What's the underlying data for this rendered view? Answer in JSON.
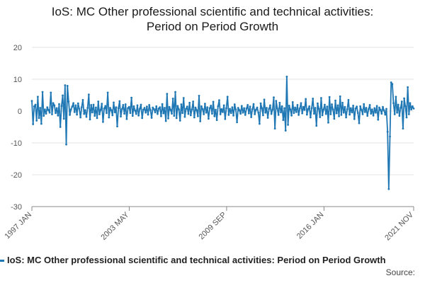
{
  "title_line1": "IoS: MC Other professional scientific and technical activities:",
  "title_line2": "Period on Period Growth",
  "legend_label": "IoS: MC Other professional scientific and technical activities: Period on Period Growth",
  "source_label": "Source:",
  "chart_data": {
    "type": "line",
    "title": "IoS: MC Other professional scientific and technical activities: Period on Period Growth",
    "xlabel": "",
    "ylabel": "",
    "ylim": [
      -30,
      20
    ],
    "yticks": [
      20,
      10,
      0,
      -10,
      -20,
      -30
    ],
    "x_tick_labels": [
      "1997 JAN",
      "2003 MAY",
      "2009 SEP",
      "2016 JAN",
      "2021 NOV"
    ],
    "x_range": [
      "1997 JAN",
      "2021 NOV"
    ],
    "grid": true,
    "legend_position": "bottom",
    "color": "#1f77b4",
    "series": [
      {
        "name": "IoS: MC Other professional scientific and technical activities: Period on Period Growth",
        "frequency": "monthly",
        "start": "1997 JAN",
        "values": [
          3.2,
          -4.1,
          1.5,
          2.0,
          -3.0,
          4.5,
          -2.2,
          1.0,
          -4.0,
          6.0,
          -1.5,
          0.5,
          -0.8,
          1.2,
          0.3,
          -0.5,
          5.8,
          -1.0,
          2.5,
          1.8,
          -0.6,
          0.9,
          -1.4,
          2.2,
          -5.0,
          1.6,
          4.9,
          -2.4,
          8.1,
          -10.5,
          7.9,
          3.0,
          -1.2,
          0.5,
          1.4,
          2.5,
          -0.3,
          1.8,
          -1.1,
          2.4,
          0.7,
          -2.0,
          1.2,
          3.5,
          -0.9,
          0.3,
          -1.8,
          1.0,
          5.2,
          -2.6,
          1.9,
          -0.4,
          2.0,
          -1.5,
          1.1,
          -2.2,
          3.0,
          -1.0,
          0.4,
          2.3,
          -3.4,
          0.8,
          1.6,
          -0.6,
          5.8,
          -2.0,
          1.0,
          0.3,
          -1.3,
          2.7,
          -0.4,
          1.2,
          -4.8,
          0.9,
          3.1,
          -1.7,
          0.6,
          1.9,
          -0.8,
          2.1,
          -2.5,
          0.9,
          1.3,
          -0.6,
          4.2,
          -1.5,
          1.5,
          0.2,
          -0.9,
          1.8,
          -1.4,
          0.7,
          2.0,
          -2.2,
          0.4,
          1.0,
          -0.5,
          1.4,
          -1.1,
          1.9,
          0.3,
          -2.1,
          1.1,
          0.6,
          -0.4,
          1.5,
          -0.9,
          0.8,
          1.2,
          -1.6,
          2.2,
          -0.7,
          1.0,
          -3.1,
          5.4,
          -2.3,
          1.3,
          0.4,
          -0.8,
          3.9,
          -1.5,
          6.0,
          -2.2,
          1.6,
          0.5,
          -3.0,
          2.1,
          -0.6,
          4.1,
          -1.8,
          0.7,
          1.4,
          -0.9,
          2.6,
          -1.3,
          0.5,
          3.0,
          -2.0,
          1.1,
          0.3,
          -1.6,
          4.8,
          -3.2,
          1.5,
          0.6,
          -1.0,
          2.3,
          -0.5,
          1.2,
          -2.4,
          0.9,
          1.7,
          -0.8,
          2.9,
          -1.6,
          0.4,
          -2.8,
          1.5,
          3.4,
          -1.0,
          0.6,
          -0.3,
          1.8,
          -2.5,
          0.9,
          4.5,
          -1.2,
          0.7,
          -0.6,
          1.2,
          -1.4,
          2.1,
          0.5,
          -3.5,
          1.0,
          0.3,
          -0.8,
          1.6,
          -0.5,
          0.9,
          -1.2,
          0.8,
          1.9,
          -0.7,
          1.4,
          -1.9,
          0.6,
          2.2,
          -1.0,
          0.4,
          1.1,
          -0.5,
          -4.0,
          2.4,
          0.9,
          -1.3,
          3.6,
          -0.5,
          1.0,
          -2.1,
          0.7,
          1.8,
          -0.9,
          0.5,
          4.3,
          -5.5,
          3.2,
          0.8,
          -1.2,
          2.6,
          -0.4,
          1.5,
          -2.8,
          0.9,
          -6.1,
          10.8,
          -4.3,
          1.7,
          0.5,
          -1.4,
          2.8,
          -0.6,
          1.1,
          -0.3,
          1.9,
          -1.2,
          0.8,
          2.5,
          -0.7,
          1.3,
          0.4,
          3.8,
          -1.1,
          0.6,
          1.5,
          -2.0,
          0.9,
          3.9,
          -0.8,
          1.0,
          -4.6,
          2.4,
          0.7,
          -1.9,
          4.1,
          -1.3,
          0.5,
          2.0,
          -0.9,
          1.4,
          -3.6,
          4.4,
          -1.0,
          2.1,
          0.5,
          -2.4,
          3.3,
          -0.7,
          1.8,
          -1.6,
          4.6,
          -1.2,
          2.6,
          -0.5,
          1.3,
          -2.0,
          0.6,
          3.5,
          -1.1,
          0.9,
          -0.4,
          1.7,
          -2.5,
          0.8,
          1.4,
          -0.6,
          -3.8,
          1.5,
          0.4,
          -1.0,
          2.2,
          -0.3,
          1.0,
          -1.5,
          0.6,
          1.9,
          -0.8,
          0.5,
          -1.4,
          0.9,
          -0.5,
          1.6,
          -2.7,
          1.1,
          0.4,
          -0.8,
          1.3,
          0.2,
          -1.1,
          0.7,
          -6.5,
          -24.5,
          -8.0,
          9.0,
          8.5,
          2.5,
          -1.0,
          4.5,
          -0.5,
          2.0,
          -1.5,
          1.0,
          3.0,
          -5.5,
          4.0,
          1.5,
          -2.0,
          7.5,
          -1.0,
          2.5,
          0.5,
          1.5,
          0.8
        ]
      }
    ]
  }
}
